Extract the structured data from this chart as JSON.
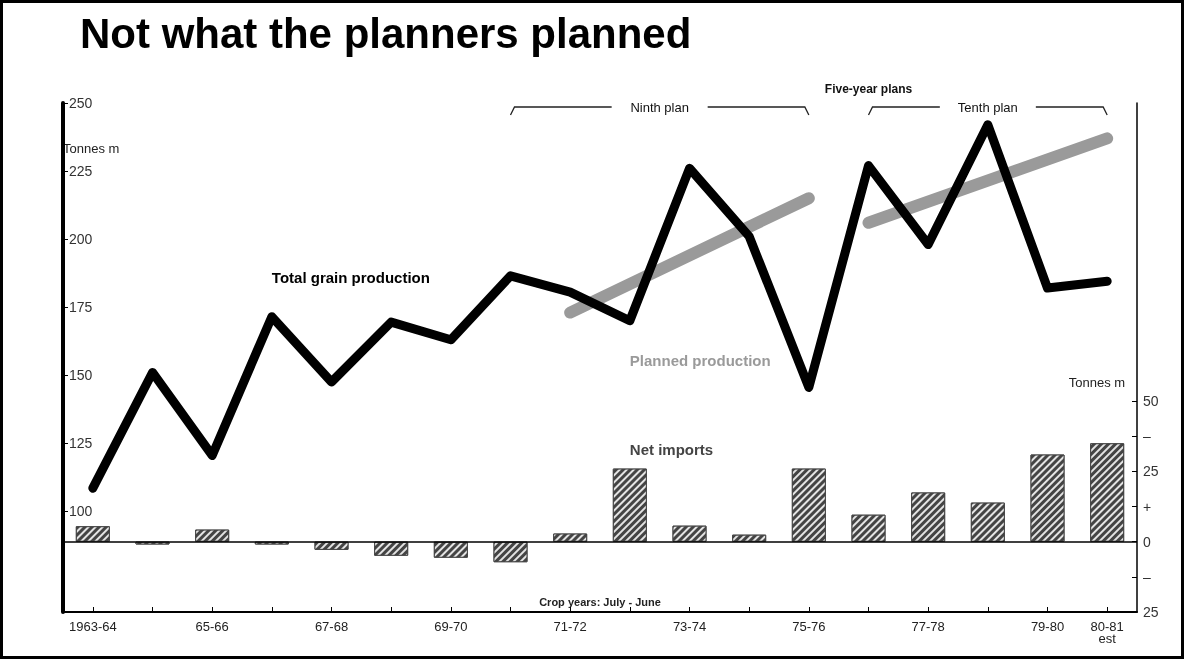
{
  "chart_data": {
    "type": "line",
    "title": "Not what the planners planned",
    "xlabel": "Crop years: July - June",
    "ylabel": "Tonnes m",
    "y2label": "Tonnes m",
    "categories": [
      "1963-64",
      null,
      "65-66",
      null,
      "67-68",
      null,
      "69-70",
      null,
      "71-72",
      null,
      "73-74",
      null,
      "75-76",
      null,
      "77-78",
      null,
      "79-80",
      "80-81\nest"
    ],
    "series": [
      {
        "name": "Net imports",
        "type": "bar",
        "axis": "y2",
        "color": "#444444",
        "values": [
          5.5,
          -1,
          4.3,
          -1,
          -2.9,
          -5,
          -5.7,
          -7.3,
          2.9,
          26,
          5.7,
          2.5,
          26,
          9.6,
          17.5,
          13.9,
          31,
          35
        ]
      },
      {
        "name": "Planned production",
        "color": "#9a9a9a",
        "values": [
          null,
          null,
          null,
          null,
          null,
          null,
          null,
          null,
          173,
          null,
          null,
          null,
          215,
          null,
          null,
          null,
          null,
          null
        ]
      },
      {
        "color": "#9a9a9a",
        "values": [
          null,
          null,
          null,
          null,
          null,
          null,
          null,
          null,
          null,
          null,
          null,
          null,
          null,
          206,
          null,
          null,
          null,
          237
        ]
      },
      {
        "name": "Total grain production",
        "color": "#000000",
        "values": [
          108.5,
          151,
          120.5,
          171.5,
          147.5,
          169.5,
          163,
          186.5,
          180.5,
          170,
          226,
          201,
          145.5,
          227,
          198,
          242,
          182,
          184.5
        ]
      }
    ],
    "ylim": [
      63,
      250
    ],
    "yticks": [
      100,
      125,
      150,
      175,
      200,
      225,
      250
    ],
    "y2lim": [
      -25,
      156
    ],
    "y2ticks": [
      50,
      {
        "value": 37.5,
        "label": "–"
      },
      25,
      {
        "value": 12.5,
        "label": "+"
      },
      0,
      {
        "value": -12.5,
        "label": "–"
      },
      {
        "value": -25,
        "label": "25"
      }
    ],
    "ref_lines": [
      {
        "axis": "y2",
        "value": 0,
        "color": "#000000"
      }
    ],
    "annotations": [
      "Five-year plans",
      "Ninth plan",
      "Tenth plan"
    ],
    "marker": "none",
    "line_style": "solid",
    "grid": false,
    "legend": false
  }
}
